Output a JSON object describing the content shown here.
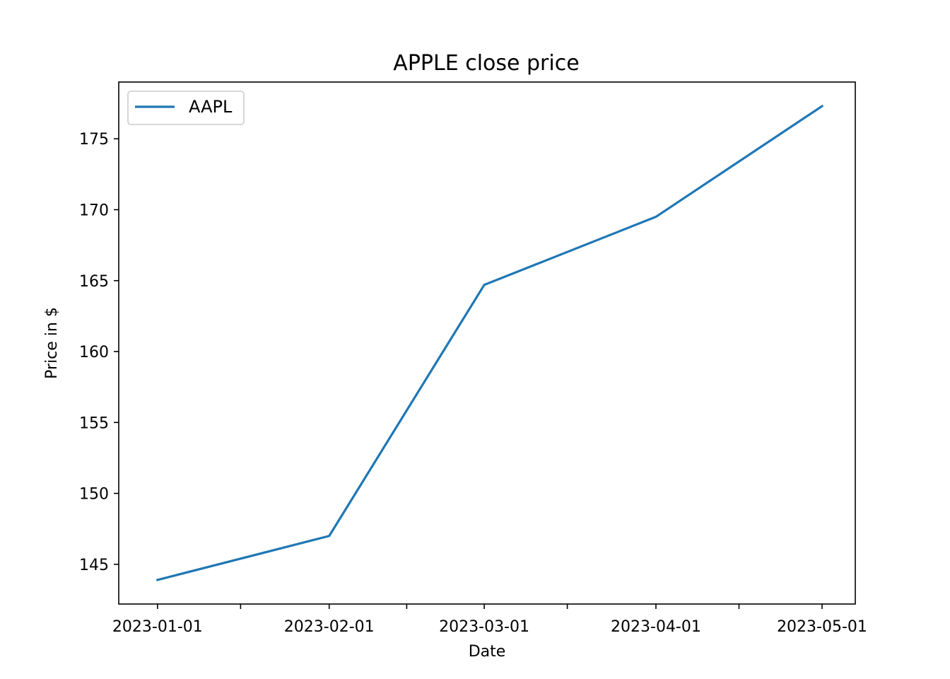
{
  "chart_data": {
    "type": "line",
    "title": "APPLE close price",
    "xlabel": "Date",
    "ylabel": "Price in $",
    "x": [
      "2023-01-01",
      "2023-02-01",
      "2023-03-01",
      "2023-04-01",
      "2023-05-01"
    ],
    "series": [
      {
        "name": "AAPL",
        "values": [
          143.9,
          147.0,
          164.7,
          169.5,
          177.3
        ]
      }
    ],
    "x_ticks": [
      "2023-01-01",
      "2023-02-01",
      "2023-03-01",
      "2023-04-01",
      "2023-05-01"
    ],
    "x_minor_ticks": [
      "2023-01-16",
      "2023-02-15",
      "2023-03-16",
      "2023-04-16"
    ],
    "y_ticks": [
      145,
      150,
      155,
      160,
      165,
      170,
      175
    ],
    "ylim": [
      142.2,
      179.0
    ],
    "xlim": [
      "2022-12-25",
      "2023-05-07"
    ],
    "grid": false,
    "legend": "upper-left",
    "colors": {
      "series": "#1f77b4"
    }
  }
}
